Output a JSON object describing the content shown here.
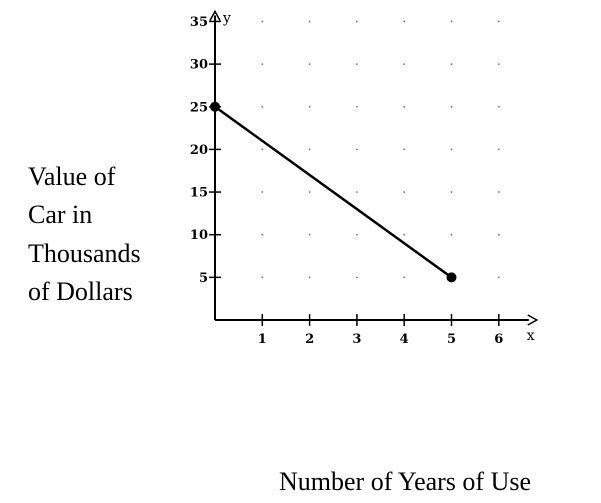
{
  "chart_data": {
    "type": "line",
    "title": "",
    "xlabel": "Number of Years of Use",
    "ylabel_lines": [
      "Value of",
      "Car in",
      "Thousands",
      "of Dollars"
    ],
    "x_axis_letter": "x",
    "y_axis_letter": "y",
    "xlim": [
      0,
      6
    ],
    "ylim": [
      0,
      35
    ],
    "x_ticks": [
      1,
      2,
      3,
      4,
      5,
      6
    ],
    "y_ticks": [
      5,
      10,
      15,
      20,
      25,
      30,
      35
    ],
    "grid": "dotted",
    "series": [
      {
        "x": [
          0,
          5
        ],
        "y": [
          25,
          5
        ],
        "color": "#000000"
      }
    ]
  }
}
